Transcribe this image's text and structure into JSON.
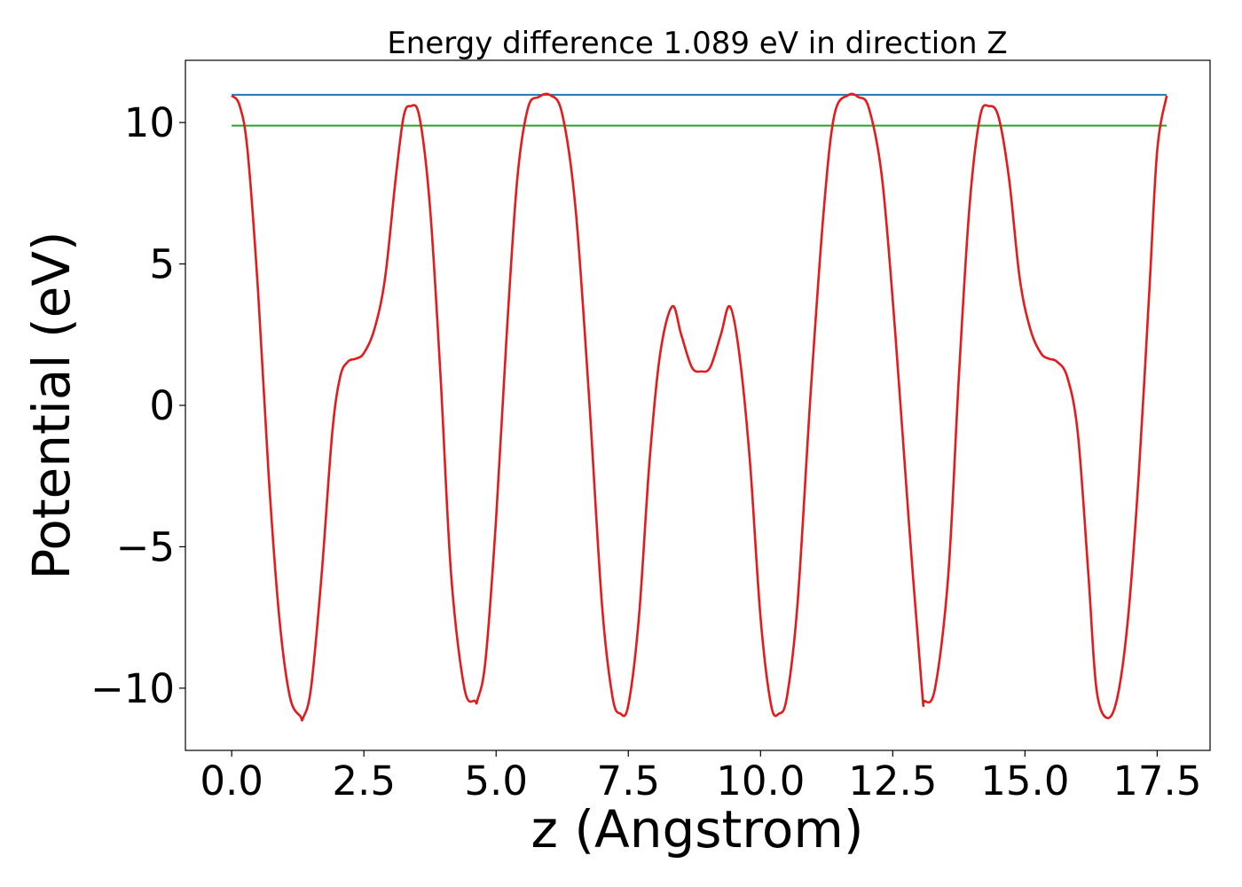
{
  "chart_data": {
    "type": "line",
    "title": "Energy difference 1.089 eV in direction Z",
    "xlabel": "z (Angstrom)",
    "ylabel": "Potential (eV)",
    "xlim": [
      -0.875,
      18.5
    ],
    "ylim": [
      -12.2,
      12.2
    ],
    "xticks": [
      0.0,
      2.5,
      5.0,
      7.5,
      10.0,
      12.5,
      15.0,
      17.5
    ],
    "xtick_labels": [
      "0.0",
      "2.5",
      "5.0",
      "7.5",
      "10.0",
      "12.5",
      "15.0",
      "17.5"
    ],
    "yticks": [
      -10,
      -5,
      0,
      5,
      10
    ],
    "ytick_labels": [
      "−10",
      "−5",
      "0",
      "5",
      "10"
    ],
    "grid": false,
    "hlines": [
      {
        "y": 10.98,
        "x": [
          0.0,
          17.68
        ],
        "color": "#1f77b4"
      },
      {
        "y": 9.89,
        "x": [
          0.0,
          17.68
        ],
        "color": "#2ca02c"
      }
    ],
    "series": [
      {
        "color": "#e41a1c",
        "x": [
          0.0,
          0.15,
          0.3,
          0.5,
          0.7,
          0.9,
          1.1,
          1.3,
          1.35,
          1.5,
          1.7,
          1.9,
          2.05,
          2.2,
          2.35,
          2.5,
          2.7,
          2.9,
          3.1,
          3.25,
          3.38,
          3.55,
          3.75,
          3.95,
          4.15,
          4.4,
          4.6,
          4.65,
          4.8,
          5.0,
          5.2,
          5.4,
          5.6,
          5.8,
          6.02,
          6.25,
          6.5,
          6.75,
          7.0,
          7.2,
          7.35,
          7.5,
          7.7,
          7.9,
          8.1,
          8.33,
          8.5,
          8.7,
          8.88,
          9.05,
          9.25,
          9.42,
          9.6,
          9.8,
          10.0,
          10.2,
          10.35,
          10.5,
          10.7,
          10.95,
          11.2,
          11.4,
          11.66,
          11.85,
          12.05,
          12.3,
          12.55,
          12.8,
          13.05,
          13.1,
          13.3,
          13.55,
          13.75,
          13.95,
          14.15,
          14.32,
          14.5,
          14.7,
          14.9,
          15.1,
          15.3,
          15.45,
          15.6,
          15.8,
          16.0,
          16.2,
          16.35,
          16.55,
          16.75,
          16.95,
          17.15,
          17.35,
          17.5,
          17.68
        ],
        "y": [
          10.95,
          10.6,
          9.0,
          4.0,
          -2.5,
          -7.5,
          -10.3,
          -11.0,
          -11.05,
          -10.0,
          -6.0,
          -1.0,
          1.0,
          1.55,
          1.65,
          1.85,
          2.7,
          4.5,
          8.0,
          10.2,
          10.58,
          10.2,
          7.0,
          1.0,
          -6.0,
          -10.0,
          -10.45,
          -10.4,
          -9.0,
          -4.0,
          2.5,
          8.0,
          10.5,
          10.9,
          10.97,
          10.3,
          7.0,
          0.5,
          -7.0,
          -10.3,
          -10.9,
          -10.6,
          -7.5,
          -2.0,
          1.8,
          3.5,
          2.5,
          1.35,
          1.2,
          1.35,
          2.5,
          3.5,
          1.8,
          -2.0,
          -7.5,
          -10.6,
          -10.9,
          -10.3,
          -7.0,
          0.5,
          7.0,
          10.3,
          10.97,
          10.9,
          10.5,
          8.0,
          2.5,
          -4.0,
          -10.0,
          -10.45,
          -10.0,
          -6.0,
          1.0,
          7.0,
          10.2,
          10.58,
          10.2,
          8.0,
          4.5,
          2.7,
          1.85,
          1.65,
          1.55,
          1.0,
          -1.0,
          -6.0,
          -10.0,
          -11.05,
          -10.3,
          -7.5,
          -2.5,
          4.0,
          9.0,
          10.95
        ]
      }
    ]
  }
}
